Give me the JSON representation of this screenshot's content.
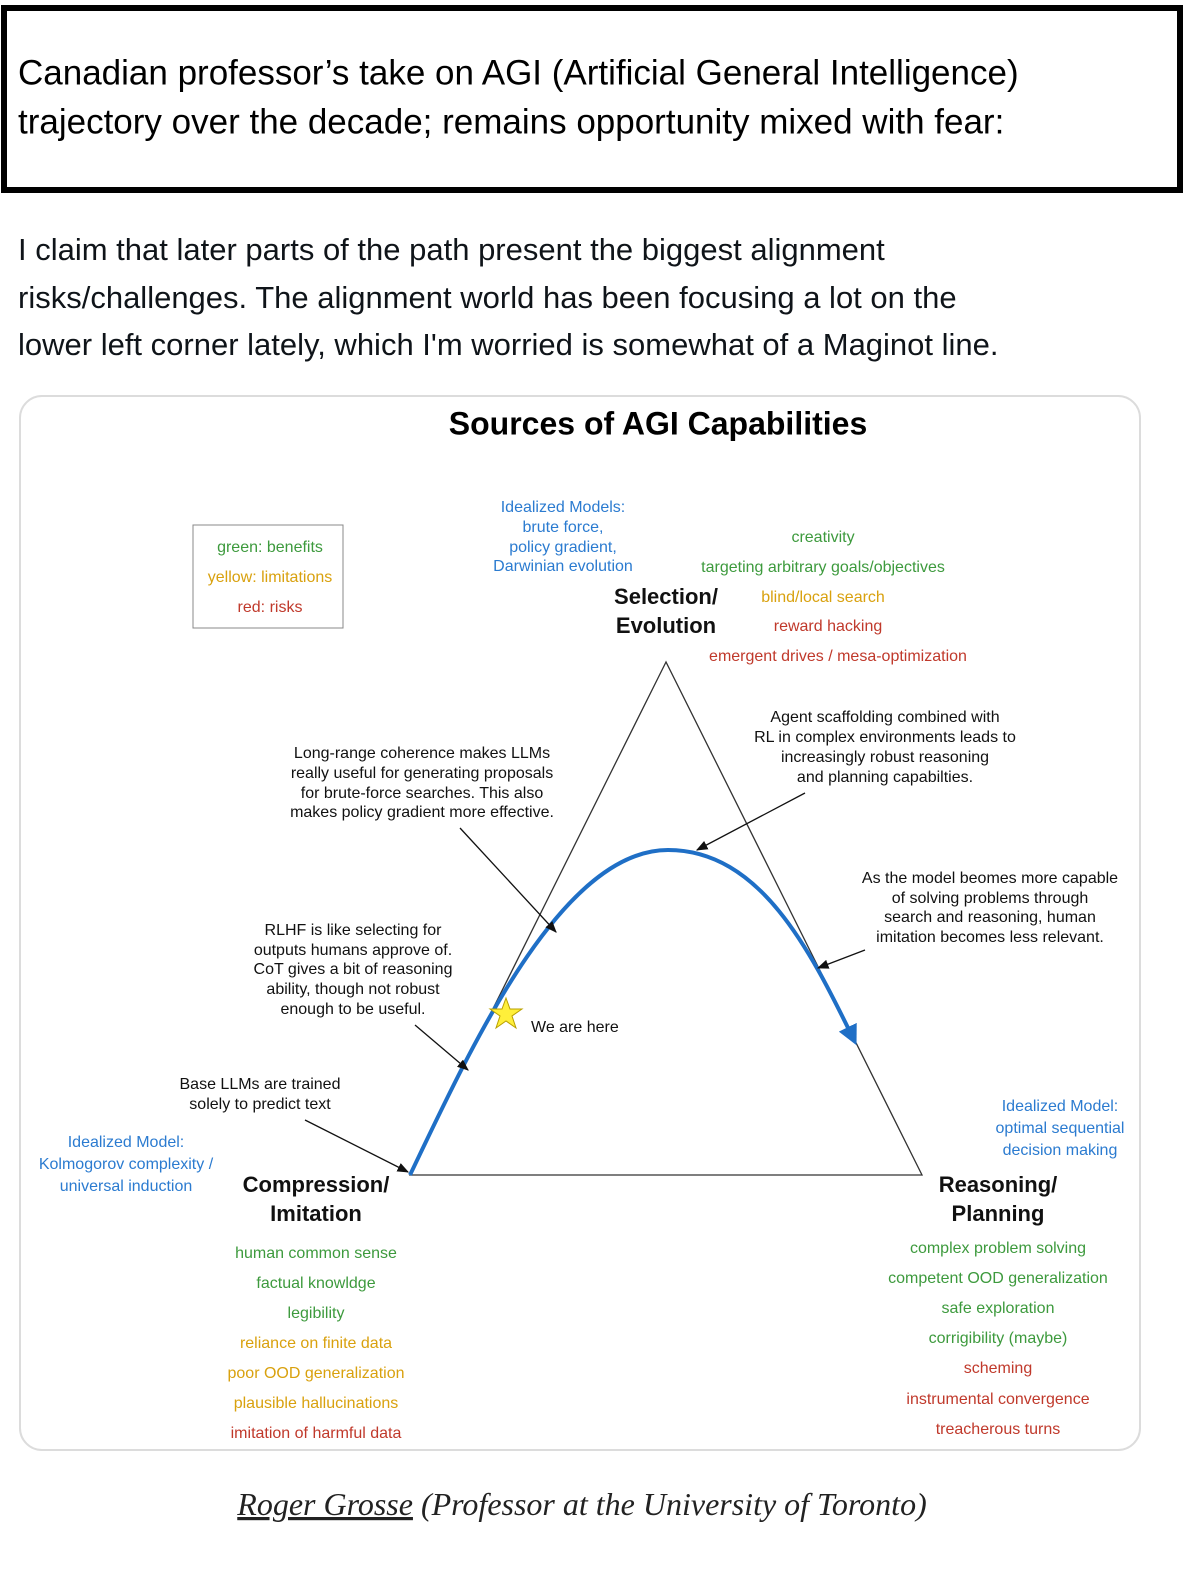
{
  "header": {
    "lines": [
      "Canadian professor’s take on AGI (Artificial General Intelligence)",
      "trajectory over the decade; remains opportunity mixed with fear:"
    ]
  },
  "post": {
    "lines": [
      "I claim that later parts of the path present the biggest alignment",
      "risks/challenges. The alignment world has been focusing a lot on the",
      "lower left corner lately, which I'm worried is somewhat of a Maginot line."
    ]
  },
  "diagram": {
    "title": "Sources of AGI Capabilities",
    "legend": [
      {
        "text": "green: benefits",
        "color": "#3d9a3d"
      },
      {
        "text": "yellow: limitations",
        "color": "#d9a10e"
      },
      {
        "text": "red: risks",
        "color": "#c0392b"
      }
    ],
    "idealized_color": "#2b7bd0",
    "corners": {
      "top": {
        "label": [
          "Selection/",
          "Evolution"
        ],
        "idealized": [
          "Idealized Models:",
          "brute force,",
          "policy gradient,",
          "Darwinian evolution"
        ],
        "items": [
          {
            "text": "creativity",
            "color": "#3d9a3d"
          },
          {
            "text": "targeting arbitrary goals/objectives",
            "color": "#3d9a3d"
          },
          {
            "text": "blind/local search",
            "color": "#d9a10e"
          },
          {
            "text": "reward hacking",
            "color": "#c0392b"
          },
          {
            "text": "emergent drives / mesa-optimization",
            "color": "#c0392b"
          }
        ]
      },
      "left": {
        "label": [
          "Compression/",
          "Imitation"
        ],
        "idealized": [
          "Idealized Model:",
          "Kolmogorov complexity /",
          "universal induction"
        ],
        "items": [
          {
            "text": "human common sense",
            "color": "#3d9a3d"
          },
          {
            "text": "factual knowldge",
            "color": "#3d9a3d"
          },
          {
            "text": "legibility",
            "color": "#3d9a3d"
          },
          {
            "text": "reliance on finite data",
            "color": "#d9a10e"
          },
          {
            "text": "poor OOD generalization",
            "color": "#d9a10e"
          },
          {
            "text": "plausible hallucinations",
            "color": "#d9a10e"
          },
          {
            "text": "imitation of harmful data",
            "color": "#c0392b"
          }
        ]
      },
      "right": {
        "label": [
          "Reasoning/",
          "Planning"
        ],
        "idealized": [
          "Idealized Model:",
          "optimal sequential",
          "decision making"
        ],
        "items": [
          {
            "text": "complex problem solving",
            "color": "#3d9a3d"
          },
          {
            "text": "competent OOD generalization",
            "color": "#3d9a3d"
          },
          {
            "text": "safe exploration",
            "color": "#3d9a3d"
          },
          {
            "text": "corrigibility (maybe)",
            "color": "#3d9a3d"
          },
          {
            "text": "scheming",
            "color": "#c0392b"
          },
          {
            "text": "instrumental convergence",
            "color": "#c0392b"
          },
          {
            "text": "treacherous turns",
            "color": "#c0392b"
          }
        ]
      }
    },
    "notes": [
      {
        "lines": [
          "Long-range coherence makes LLMs",
          "really useful for generating proposals",
          "for brute-force searches. This also",
          "makes policy gradient more effective."
        ]
      },
      {
        "lines": [
          "Agent scaffolding combined with",
          "RL in complex environments leads to",
          "increasingly robust reasoning",
          "and planning capabilties."
        ]
      },
      {
        "lines": [
          "As the model beomes more capable",
          "of solving problems through",
          "search and reasoning, human",
          "imitation becomes less relevant."
        ]
      },
      {
        "lines": [
          "RLHF is like selecting for",
          "outputs humans approve of.",
          "CoT gives a bit of reasoning",
          "ability, though not robust",
          "enough to be useful."
        ]
      },
      {
        "lines": [
          "Base LLMs are trained",
          "solely to predict text"
        ]
      }
    ],
    "marker": "We are here"
  },
  "credit": {
    "name": "Roger Grosse",
    "affiliation": "(Professor at the University of Toronto)"
  }
}
